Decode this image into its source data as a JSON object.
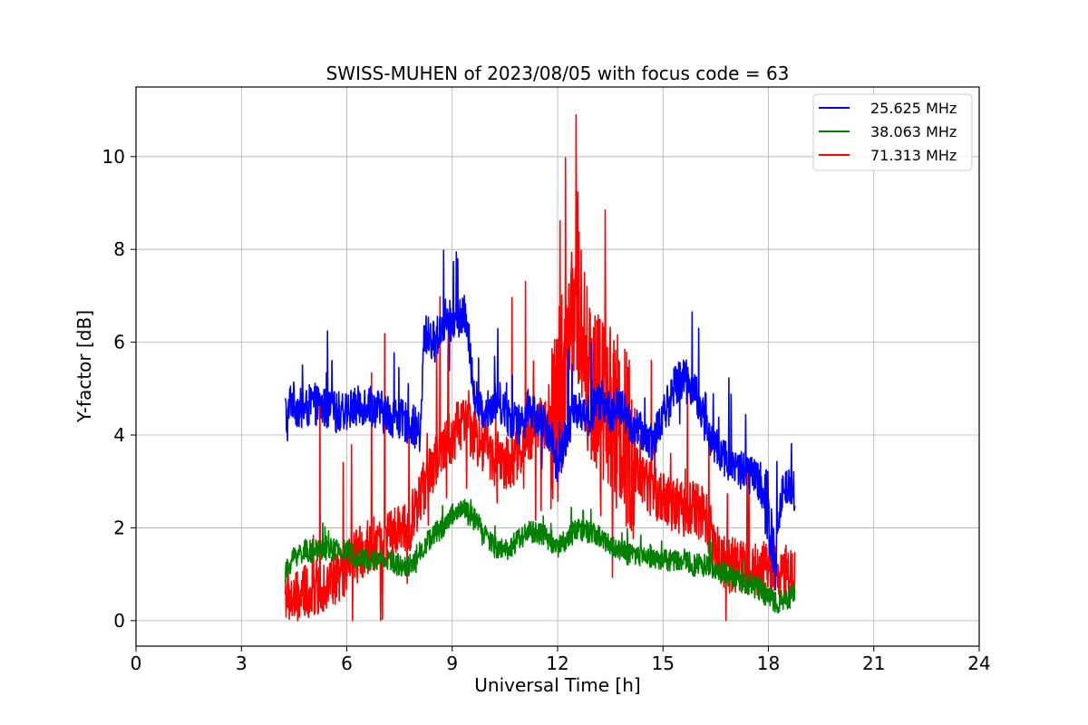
{
  "chart_data": {
    "type": "line",
    "title": "SWISS-MUHEN of 2023/08/05 with focus code = 63",
    "xlabel": "Universal Time [h]",
    "ylabel": "Y-factor [dB]",
    "xlim": [
      0,
      24
    ],
    "ylim": [
      -0.55,
      11.5
    ],
    "xticks": [
      0,
      3,
      6,
      9,
      12,
      15,
      18,
      21,
      24
    ],
    "yticks": [
      0,
      2,
      4,
      6,
      8,
      10
    ],
    "grid": true,
    "legend_position": "top-right",
    "series": [
      {
        "name": "25.625 MHz",
        "color": "#0000ff",
        "x": [
          4.25,
          4.3,
          4.4,
          4.6,
          4.8,
          5.0,
          5.3,
          5.6,
          6.0,
          6.3,
          6.6,
          7.0,
          7.3,
          7.6,
          7.9,
          8.1,
          8.2,
          8.5,
          8.8,
          9.1,
          9.4,
          9.6,
          9.8,
          10.0,
          10.3,
          10.6,
          10.9,
          11.2,
          11.5,
          11.8,
          12.0,
          12.3,
          12.6,
          12.9,
          13.2,
          13.5,
          13.8,
          14.1,
          14.4,
          14.7,
          15.0,
          15.3,
          15.6,
          15.9,
          16.2,
          16.5,
          16.8,
          17.1,
          17.4,
          17.7,
          18.0,
          18.2,
          18.4,
          18.6,
          18.75
        ],
        "y": [
          4.6,
          4.2,
          4.8,
          4.6,
          4.5,
          4.7,
          4.6,
          4.5,
          4.5,
          4.6,
          4.7,
          4.5,
          4.4,
          4.3,
          4.2,
          4.0,
          6.2,
          6.0,
          6.5,
          6.4,
          6.6,
          5.0,
          4.5,
          4.6,
          4.8,
          4.4,
          4.2,
          4.6,
          4.3,
          4.0,
          3.3,
          4.2,
          4.6,
          4.4,
          4.8,
          4.5,
          4.6,
          4.2,
          4.0,
          3.9,
          4.4,
          5.0,
          5.3,
          5.0,
          4.2,
          3.7,
          3.5,
          3.3,
          3.2,
          3.0,
          2.2,
          1.4,
          2.8,
          3.0,
          2.8
        ],
        "visible_peak": 8.1
      },
      {
        "name": "38.063 MHz",
        "color": "#008000",
        "x": [
          4.25,
          4.5,
          4.8,
          5.1,
          5.4,
          5.7,
          6.0,
          6.3,
          6.6,
          6.9,
          7.2,
          7.5,
          7.8,
          8.1,
          8.4,
          8.7,
          9.0,
          9.3,
          9.6,
          9.9,
          10.2,
          10.5,
          10.8,
          11.1,
          11.4,
          11.7,
          12.0,
          12.3,
          12.6,
          12.9,
          13.2,
          13.5,
          13.8,
          14.1,
          14.4,
          14.7,
          15.0,
          15.3,
          15.6,
          15.9,
          16.2,
          16.5,
          16.8,
          17.1,
          17.4,
          17.7,
          18.0,
          18.3,
          18.6,
          18.75
        ],
        "y": [
          1.0,
          1.4,
          1.5,
          1.5,
          1.6,
          1.5,
          1.5,
          1.4,
          1.3,
          1.3,
          1.3,
          1.2,
          1.2,
          1.5,
          1.8,
          2.0,
          2.3,
          2.4,
          2.2,
          1.9,
          1.6,
          1.5,
          1.7,
          1.9,
          1.9,
          1.8,
          1.6,
          1.8,
          2.0,
          1.9,
          1.8,
          1.6,
          1.5,
          1.4,
          1.4,
          1.4,
          1.3,
          1.3,
          1.3,
          1.2,
          1.2,
          1.1,
          1.0,
          0.9,
          0.8,
          0.7,
          0.5,
          0.4,
          0.5,
          0.6
        ]
      },
      {
        "name": "71.313 MHz",
        "color": "#ff0000",
        "x": [
          4.25,
          4.5,
          4.8,
          5.1,
          5.4,
          5.7,
          6.0,
          6.3,
          6.6,
          6.9,
          7.2,
          7.5,
          7.8,
          8.1,
          8.4,
          8.7,
          9.0,
          9.3,
          9.6,
          9.9,
          10.2,
          10.5,
          10.8,
          11.1,
          11.4,
          11.7,
          12.0,
          12.3,
          12.5,
          12.7,
          12.9,
          13.1,
          13.3,
          13.5,
          13.8,
          14.1,
          14.4,
          14.7,
          15.0,
          15.3,
          15.6,
          15.9,
          16.2,
          16.5,
          16.8,
          17.1,
          17.4,
          17.7,
          18.0,
          18.3,
          18.6,
          18.75
        ],
        "y": [
          0.6,
          0.4,
          0.6,
          0.7,
          0.8,
          0.9,
          1.1,
          1.4,
          1.6,
          1.7,
          1.8,
          1.9,
          2.1,
          2.7,
          3.2,
          3.6,
          4.0,
          4.3,
          4.0,
          3.8,
          3.5,
          3.4,
          3.5,
          3.9,
          4.2,
          4.3,
          4.3,
          5.5,
          7.0,
          6.2,
          5.2,
          4.8,
          4.7,
          4.5,
          4.2,
          3.6,
          3.0,
          2.8,
          2.6,
          2.5,
          2.4,
          2.4,
          2.3,
          1.5,
          1.2,
          1.2,
          1.1,
          1.1,
          1.2,
          1.1,
          1.0,
          1.0
        ],
        "visible_peak": 10.9
      }
    ]
  }
}
